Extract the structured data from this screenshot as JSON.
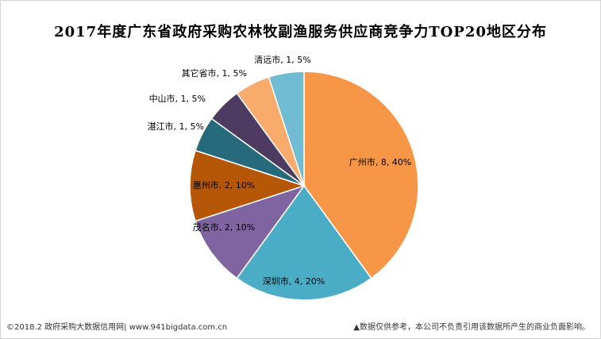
{
  "title": "2017年度广东省政府采购农林牧副渔服务供应商竞争力TOP20地区分布",
  "footer": {
    "left": "©2018.2 政府采购大数据信用网| www.941bigdata.com.cn",
    "right": "▲数据仅供参考，本公司不负责引用该数据所产生的商业负面影响。"
  },
  "chart_data": {
    "type": "pie",
    "title": "2017年度广东省政府采购农林牧副渔服务供应商竞争力TOP20地区分布",
    "start": "12 o'clock, clockwise",
    "slices": [
      {
        "name": "广州市",
        "value": 8,
        "percent": "40%",
        "label": "广州市, 8, 40%",
        "color": "#F79646"
      },
      {
        "name": "深圳市",
        "value": 4,
        "percent": "20%",
        "label": "深圳市, 4, 20%",
        "color": "#4BACC6"
      },
      {
        "name": "茂名市",
        "value": 2,
        "percent": "10%",
        "label": "茂名市, 2, 10%",
        "color": "#8064A2"
      },
      {
        "name": "惠州市",
        "value": 2,
        "percent": "10%",
        "label": "惠州市, 2, 10%",
        "color": "#B65708"
      },
      {
        "name": "湛江市",
        "value": 1,
        "percent": "5%",
        "label": "湛江市, 1, 5%",
        "color": "#276A7C"
      },
      {
        "name": "中山市",
        "value": 1,
        "percent": "5%",
        "label": "中山市, 1, 5%",
        "color": "#4D3B62"
      },
      {
        "name": "其它省市",
        "value": 1,
        "percent": "5%",
        "label": "其它省市, 1, 5%",
        "color": "#F9AB6B"
      },
      {
        "name": "清远市",
        "value": 1,
        "percent": "5%",
        "label": "清远市, 1, 5%",
        "color": "#70BCD2"
      }
    ]
  }
}
